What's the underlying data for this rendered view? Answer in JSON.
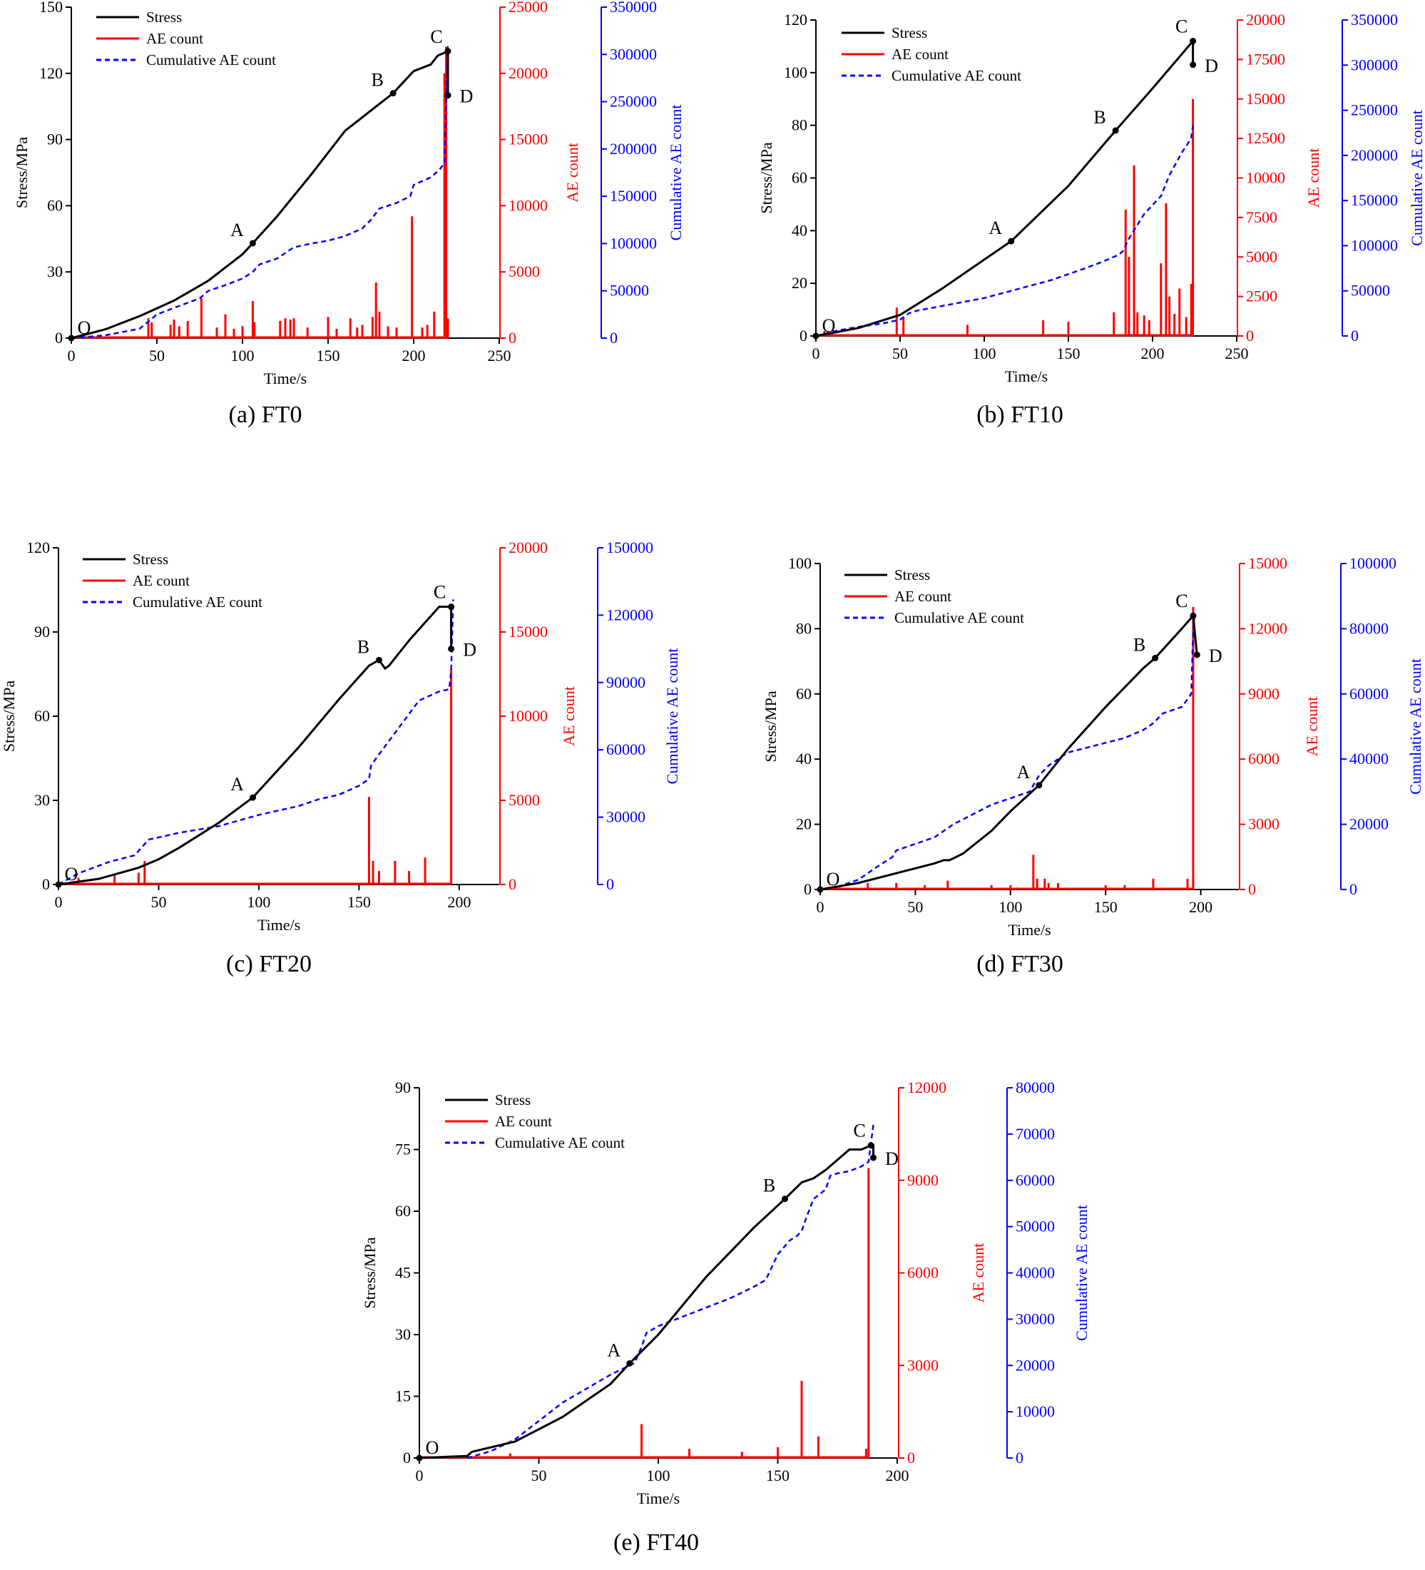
{
  "colors": {
    "stress": "#000000",
    "ae_count": "#ff0000",
    "cumulative": "#0000ff"
  },
  "legend_labels": [
    "Stress",
    "AE count",
    "Cumulative AE count"
  ],
  "chart_data": [
    {
      "type": "line",
      "caption": "(a) FT0",
      "xlabel": "Time/s",
      "ylabel_left": "Stress/MPa",
      "ylabel_right1": "AE count",
      "ylabel_right2": "Cumulative AE count",
      "xlim": [
        0,
        250
      ],
      "xticks": [
        0,
        50,
        100,
        150,
        200,
        250
      ],
      "y_stress_lim": [
        0,
        150
      ],
      "y_stress_ticks": [
        0,
        30,
        60,
        90,
        120,
        150
      ],
      "y_ae_lim": [
        0,
        25000
      ],
      "y_ae_ticks": [
        0,
        5000,
        10000,
        15000,
        20000,
        25000
      ],
      "y_cum_lim": [
        0,
        350000
      ],
      "y_cum_ticks": [
        0,
        50000,
        100000,
        150000,
        200000,
        250000,
        300000,
        350000
      ],
      "legend": [
        "Stress",
        "AE count",
        "Cumulative AE count"
      ],
      "series": [
        {
          "name": "Stress",
          "x": [
            0,
            20,
            40,
            60,
            80,
            100,
            106,
            120,
            140,
            160,
            188,
            200,
            210,
            214,
            220,
            220
          ],
          "y": [
            0,
            4,
            10,
            17,
            26,
            38,
            43,
            55,
            74,
            94,
            111,
            121,
            124,
            128,
            130,
            110
          ]
        },
        {
          "name": "Cumulative AE count",
          "x": [
            0,
            20,
            40,
            50,
            60,
            75,
            80,
            90,
            100,
            106,
            110,
            120,
            130,
            140,
            150,
            160,
            170,
            175,
            180,
            190,
            198,
            200,
            210,
            215,
            218,
            220
          ],
          "y": [
            0,
            3000,
            10000,
            25000,
            32000,
            42000,
            50000,
            56000,
            63000,
            70000,
            78000,
            84000,
            96000,
            100000,
            103000,
            108000,
            116000,
            125000,
            137000,
            143000,
            150000,
            162000,
            170000,
            178000,
            185000,
            310000
          ]
        },
        {
          "name": "AE count",
          "x": [
            45,
            47,
            58,
            60,
            63,
            68,
            76,
            85,
            90,
            95,
            100,
            106,
            107,
            122,
            125,
            128,
            130,
            138,
            150,
            155,
            163,
            167,
            170,
            176,
            178,
            180,
            185,
            190,
            199,
            205,
            208,
            212,
            218,
            219,
            220
          ],
          "y": [
            1500,
            1200,
            1000,
            1400,
            900,
            1300,
            3000,
            800,
            1800,
            700,
            900,
            2800,
            1200,
            1300,
            1500,
            1400,
            1500,
            800,
            1600,
            700,
            1500,
            800,
            1000,
            1600,
            4200,
            2000,
            900,
            800,
            9200,
            800,
            1000,
            2000,
            20000,
            22000,
            1500
          ]
        }
      ],
      "annotations": [
        {
          "label": "O",
          "x": 0,
          "y": 0
        },
        {
          "label": "A",
          "x": 106,
          "y": 43
        },
        {
          "label": "B",
          "x": 188,
          "y": 111
        },
        {
          "label": "C",
          "x": 220,
          "y": 130
        },
        {
          "label": "D",
          "x": 220,
          "y": 110
        }
      ]
    },
    {
      "type": "line",
      "caption": "(b) FT10",
      "xlabel": "Time/s",
      "ylabel_left": "Stress/MPa",
      "ylabel_right1": "AE count",
      "ylabel_right2": "Cumulative AE count",
      "xlim": [
        0,
        250
      ],
      "xticks": [
        0,
        50,
        100,
        150,
        200,
        250
      ],
      "y_stress_lim": [
        0,
        120
      ],
      "y_stress_ticks": [
        0,
        20,
        40,
        60,
        80,
        100,
        120
      ],
      "y_ae_lim": [
        0,
        20000
      ],
      "y_ae_ticks": [
        0,
        2500,
        5000,
        7500,
        10000,
        12500,
        15000,
        17500,
        20000
      ],
      "y_cum_lim": [
        0,
        350000
      ],
      "y_cum_ticks": [
        0,
        50000,
        100000,
        150000,
        200000,
        250000,
        300000,
        350000
      ],
      "legend": [
        "Stress",
        "AE count",
        "Cumulative AE count"
      ],
      "series": [
        {
          "name": "Stress",
          "x": [
            0,
            25,
            50,
            75,
            100,
            116,
            150,
            178,
            200,
            224,
            224
          ],
          "y": [
            0,
            3,
            8,
            18,
            29,
            36,
            57,
            78,
            94,
            112,
            103
          ]
        },
        {
          "name": "Cumulative AE count",
          "x": [
            0,
            10,
            25,
            40,
            50,
            55,
            60,
            80,
            100,
            120,
            140,
            160,
            170,
            180,
            183,
            185,
            190,
            195,
            200,
            205,
            210,
            215,
            218,
            220,
            223,
            224
          ],
          "y": [
            0,
            5000,
            10000,
            14000,
            18000,
            25000,
            28000,
            35000,
            42000,
            52000,
            62000,
            75000,
            82000,
            90000,
            95000,
            105000,
            120000,
            135000,
            145000,
            155000,
            178000,
            195000,
            205000,
            210000,
            220000,
            233000
          ]
        },
        {
          "name": "AE count",
          "x": [
            5,
            48,
            52,
            90,
            135,
            150,
            177,
            184,
            186,
            189,
            191,
            195,
            198,
            205,
            208,
            210,
            213,
            216,
            220,
            223,
            224
          ],
          "y": [
            300,
            1800,
            1200,
            700,
            1000,
            900,
            1500,
            8000,
            5000,
            10800,
            1500,
            1300,
            1000,
            4600,
            8400,
            2500,
            1400,
            3000,
            1200,
            3300,
            15000
          ]
        }
      ],
      "annotations": [
        {
          "label": "O",
          "x": 0,
          "y": 0
        },
        {
          "label": "A",
          "x": 116,
          "y": 36
        },
        {
          "label": "B",
          "x": 178,
          "y": 78
        },
        {
          "label": "C",
          "x": 224,
          "y": 112
        },
        {
          "label": "D",
          "x": 224,
          "y": 103
        }
      ]
    },
    {
      "type": "line",
      "caption": "(c) FT20",
      "xlabel": "Time/s",
      "ylabel_left": "Stress/MPa",
      "ylabel_right1": "AE count",
      "ylabel_right2": "Cumulative AE count",
      "xlim": [
        0,
        220
      ],
      "xticks": [
        0,
        50,
        100,
        150,
        200
      ],
      "y_stress_lim": [
        0,
        120
      ],
      "y_stress_ticks": [
        0,
        30,
        60,
        90,
        120
      ],
      "y_ae_lim": [
        0,
        20000
      ],
      "y_ae_ticks": [
        0,
        5000,
        10000,
        15000,
        20000
      ],
      "y_cum_lim": [
        0,
        150000
      ],
      "y_cum_ticks": [
        0,
        30000,
        60000,
        90000,
        120000,
        150000
      ],
      "legend": [
        "Stress",
        "AE count",
        "Cumulative AE count"
      ],
      "series": [
        {
          "name": "Stress",
          "x": [
            0,
            20,
            40,
            50,
            60,
            80,
            97,
            120,
            140,
            150,
            155,
            160,
            163,
            165,
            175,
            185,
            190,
            196,
            196
          ],
          "y": [
            0,
            2,
            6,
            9,
            13,
            22,
            31,
            49,
            66,
            74,
            78,
            80,
            77,
            78,
            87,
            95,
            99,
            99,
            84
          ]
        },
        {
          "name": "Cumulative AE count",
          "x": [
            0,
            10,
            25,
            38,
            43,
            45,
            60,
            80,
            100,
            120,
            130,
            140,
            150,
            155,
            156,
            160,
            165,
            170,
            180,
            190,
            195,
            196,
            197
          ],
          "y": [
            0,
            5000,
            10000,
            13000,
            18000,
            20000,
            23000,
            26000,
            31000,
            35000,
            38000,
            40000,
            44000,
            47000,
            53000,
            58000,
            64000,
            70000,
            82000,
            86000,
            87000,
            95000,
            127000
          ]
        },
        {
          "name": "AE count",
          "x": [
            10,
            28,
            40,
            43,
            155,
            157,
            160,
            168,
            175,
            183,
            196
          ],
          "y": [
            400,
            600,
            700,
            1400,
            5200,
            1400,
            800,
            1400,
            800,
            1600,
            12800
          ]
        }
      ],
      "annotations": [
        {
          "label": "O",
          "x": 0,
          "y": 0
        },
        {
          "label": "A",
          "x": 97,
          "y": 31
        },
        {
          "label": "B",
          "x": 160,
          "y": 80
        },
        {
          "label": "C",
          "x": 196,
          "y": 99
        },
        {
          "label": "D",
          "x": 196,
          "y": 84
        }
      ]
    },
    {
      "type": "line",
      "caption": "(d) FT30",
      "xlabel": "Time/s",
      "ylabel_left": "Stress/MPa",
      "ylabel_right1": "AE count",
      "ylabel_right2": "Cumulative AE count",
      "xlim": [
        0,
        220
      ],
      "xticks": [
        0,
        50,
        100,
        150,
        200
      ],
      "y_stress_lim": [
        0,
        100
      ],
      "y_stress_ticks": [
        0,
        20,
        40,
        60,
        80,
        100
      ],
      "y_ae_lim": [
        0,
        15000
      ],
      "y_ae_ticks": [
        0,
        3000,
        6000,
        9000,
        12000,
        15000
      ],
      "y_cum_lim": [
        0,
        100000
      ],
      "y_cum_ticks": [
        0,
        20000,
        40000,
        60000,
        80000,
        100000
      ],
      "legend": [
        "Stress",
        "AE count",
        "Cumulative AE count"
      ],
      "series": [
        {
          "name": "Stress",
          "x": [
            0,
            20,
            40,
            60,
            65,
            68,
            75,
            90,
            100,
            115,
            130,
            150,
            170,
            176,
            190,
            196,
            198
          ],
          "y": [
            0,
            2,
            5,
            8,
            9,
            9,
            11,
            18,
            24,
            32,
            43,
            56,
            68,
            71,
            80,
            84,
            72
          ]
        },
        {
          "name": "Cumulative AE count",
          "x": [
            0,
            10,
            20,
            30,
            38,
            40,
            55,
            60,
            65,
            70,
            80,
            90,
            100,
            110,
            112,
            115,
            120,
            130,
            140,
            150,
            160,
            170,
            175,
            180,
            190,
            195,
            196,
            197
          ],
          "y": [
            0,
            1000,
            3000,
            7000,
            10000,
            12000,
            15000,
            16000,
            18000,
            20000,
            23000,
            26000,
            28000,
            30000,
            32000,
            35000,
            38000,
            42000,
            43500,
            45000,
            46500,
            49000,
            51000,
            54000,
            56000,
            60000,
            80000,
            85000
          ]
        },
        {
          "name": "AE count",
          "x": [
            25,
            40,
            55,
            67,
            90,
            100,
            112,
            114,
            118,
            120,
            125,
            150,
            160,
            175,
            193,
            196
          ],
          "y": [
            300,
            300,
            200,
            400,
            200,
            200,
            1600,
            500,
            500,
            300,
            300,
            200,
            200,
            500,
            500,
            13000
          ]
        }
      ],
      "annotations": [
        {
          "label": "O",
          "x": 0,
          "y": 0
        },
        {
          "label": "A",
          "x": 115,
          "y": 32
        },
        {
          "label": "B",
          "x": 176,
          "y": 71
        },
        {
          "label": "C",
          "x": 196,
          "y": 84
        },
        {
          "label": "D",
          "x": 198,
          "y": 72
        }
      ]
    },
    {
      "type": "line",
      "caption": "(e) FT40",
      "xlabel": "Time/s",
      "ylabel_left": "Stress/MPa",
      "ylabel_right1": "AE count",
      "ylabel_right2": "Cumulative AE count",
      "xlim": [
        0,
        200
      ],
      "xticks": [
        0,
        50,
        100,
        150,
        200
      ],
      "y_stress_lim": [
        0,
        90
      ],
      "y_stress_ticks": [
        0,
        15,
        30,
        45,
        60,
        75,
        90
      ],
      "y_ae_lim": [
        0,
        12000
      ],
      "y_ae_ticks": [
        0,
        3000,
        6000,
        9000,
        12000
      ],
      "y_cum_lim": [
        0,
        80000
      ],
      "y_cum_ticks": [
        0,
        10000,
        20000,
        30000,
        40000,
        50000,
        60000,
        70000,
        80000
      ],
      "legend": [
        "Stress",
        "AE count",
        "Cumulative AE count"
      ],
      "series": [
        {
          "name": "Stress",
          "x": [
            0,
            20,
            22,
            40,
            60,
            80,
            88,
            100,
            120,
            140,
            153,
            160,
            165,
            170,
            180,
            185,
            189,
            190,
            190
          ],
          "y": [
            0,
            0.5,
            1.5,
            4,
            10,
            18,
            23,
            30,
            44,
            56,
            63,
            67,
            68,
            70,
            75,
            75,
            76,
            76,
            73
          ]
        },
        {
          "name": "Cumulative AE count",
          "x": [
            20,
            30,
            40,
            50,
            60,
            70,
            80,
            90,
            93,
            95,
            100,
            110,
            120,
            130,
            140,
            145,
            150,
            155,
            158,
            160,
            162,
            165,
            170,
            172,
            175,
            180,
            185,
            188,
            189,
            190
          ],
          "y": [
            0,
            1500,
            4000,
            8000,
            12000,
            15000,
            18000,
            20500,
            24000,
            27000,
            28500,
            30500,
            32500,
            34500,
            37000,
            38500,
            44000,
            47000,
            48000,
            49000,
            52000,
            56000,
            58000,
            61000,
            61500,
            62000,
            63000,
            64000,
            68000,
            72000
          ]
        },
        {
          "name": "AE count",
          "x": [
            38,
            93,
            113,
            135,
            150,
            160,
            167,
            187,
            188
          ],
          "y": [
            150,
            1100,
            300,
            200,
            350,
            2500,
            700,
            300,
            9400
          ]
        }
      ],
      "annotations": [
        {
          "label": "O",
          "x": 0,
          "y": 0
        },
        {
          "label": "A",
          "x": 88,
          "y": 23
        },
        {
          "label": "B",
          "x": 153,
          "y": 63
        },
        {
          "label": "C",
          "x": 189,
          "y": 76
        },
        {
          "label": "D",
          "x": 190,
          "y": 73
        }
      ]
    }
  ]
}
